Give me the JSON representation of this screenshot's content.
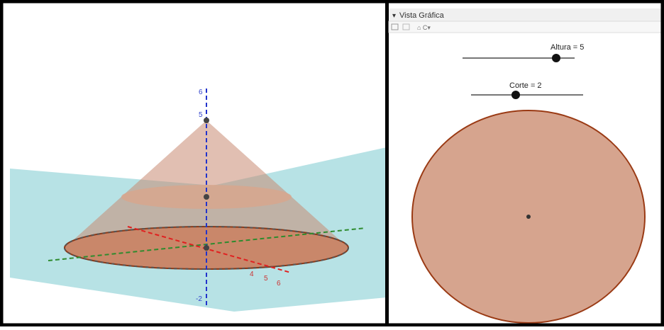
{
  "panel": {
    "title": "Vista Gráfica"
  },
  "sliders": [
    {
      "label": "Altura = 5"
    },
    {
      "label": "Corte = 2"
    }
  ],
  "axis_labels": {
    "z": [
      "6",
      "5",
      "-2"
    ],
    "x": [
      "4",
      "5",
      "6"
    ]
  }
}
